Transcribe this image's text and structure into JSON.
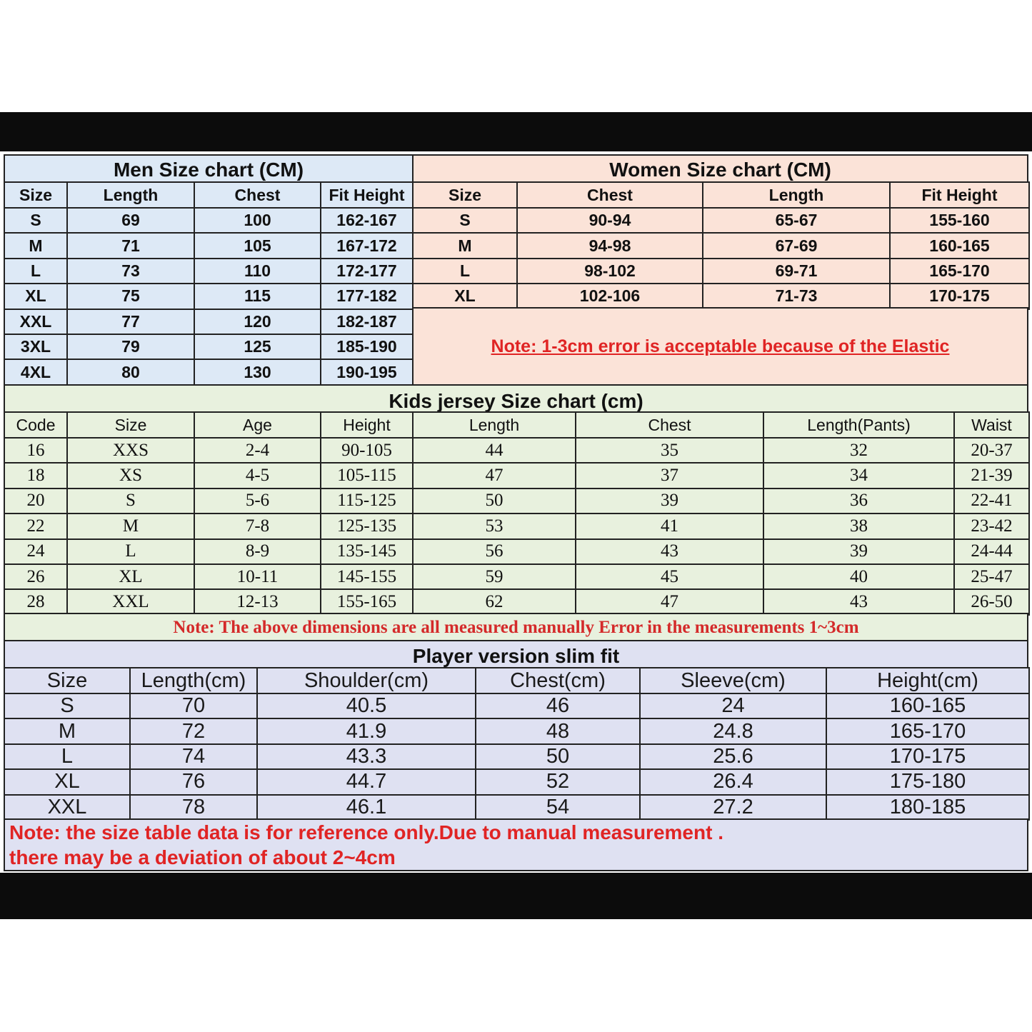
{
  "colors": {
    "men_bg": "#dde9f6",
    "women_bg": "#fbe3d8",
    "kids_bg": "#e8f1de",
    "player_bg": "#dfe1f2",
    "note_red": "#e02424"
  },
  "men": {
    "title": "Men Size chart (CM)",
    "headers": [
      "Size",
      "Length",
      "Chest",
      "Fit Height"
    ],
    "rows": [
      [
        "S",
        "69",
        "100",
        "162-167"
      ],
      [
        "M",
        "71",
        "105",
        "167-172"
      ],
      [
        "L",
        "73",
        "110",
        "172-177"
      ],
      [
        "XL",
        "75",
        "115",
        "177-182"
      ],
      [
        "XXL",
        "77",
        "120",
        "182-187"
      ],
      [
        "3XL",
        "79",
        "125",
        "185-190"
      ],
      [
        "4XL",
        "80",
        "130",
        "190-195"
      ]
    ]
  },
  "women": {
    "title": "Women Size chart (CM)",
    "headers": [
      "Size",
      "Chest",
      "Length",
      "Fit Height"
    ],
    "rows": [
      [
        "S",
        "90-94",
        "65-67",
        "155-160"
      ],
      [
        "M",
        "94-98",
        "67-69",
        "160-165"
      ],
      [
        "L",
        "98-102",
        "69-71",
        "165-170"
      ],
      [
        "XL",
        "102-106",
        "71-73",
        "170-175"
      ]
    ],
    "note": "Note: 1-3cm error is acceptable because of the Elastic"
  },
  "kids": {
    "title": "Kids jersey Size chart (cm)",
    "headers": [
      "Code",
      "Size",
      "Age",
      "Height",
      "Length",
      "Chest",
      "Length(Pants)",
      "Waist"
    ],
    "rows": [
      [
        "16",
        "XXS",
        "2-4",
        "90-105",
        "44",
        "35",
        "32",
        "20-37"
      ],
      [
        "18",
        "XS",
        "4-5",
        "105-115",
        "47",
        "37",
        "34",
        "21-39"
      ],
      [
        "20",
        "S",
        "5-6",
        "115-125",
        "50",
        "39",
        "36",
        "22-41"
      ],
      [
        "22",
        "M",
        "7-8",
        "125-135",
        "53",
        "41",
        "38",
        "23-42"
      ],
      [
        "24",
        "L",
        "8-9",
        "135-145",
        "56",
        "43",
        "39",
        "24-44"
      ],
      [
        "26",
        "XL",
        "10-11",
        "145-155",
        "59",
        "45",
        "40",
        "25-47"
      ],
      [
        "28",
        "XXL",
        "12-13",
        "155-165",
        "62",
        "47",
        "43",
        "26-50"
      ]
    ],
    "note": "Note: The above dimensions are all measured manually Error in the measurements 1~3cm"
  },
  "player": {
    "title": "Player version slim fit",
    "headers": [
      "Size",
      "Length(cm)",
      "Shoulder(cm)",
      "Chest(cm)",
      "Sleeve(cm)",
      "Height(cm)"
    ],
    "rows": [
      [
        "S",
        "70",
        "40.5",
        "46",
        "24",
        "160-165"
      ],
      [
        "M",
        "72",
        "41.9",
        "48",
        "24.8",
        "165-170"
      ],
      [
        "L",
        "74",
        "43.3",
        "50",
        "25.6",
        "170-175"
      ],
      [
        "XL",
        "76",
        "44.7",
        "52",
        "26.4",
        "175-180"
      ],
      [
        "XXL",
        "78",
        "46.1",
        "54",
        "27.2",
        "180-185"
      ]
    ],
    "note_line1": "Note:  the size table data is for reference only.Due to manual measurement .",
    "note_line2": "there may be a deviation of about 2~4cm"
  }
}
